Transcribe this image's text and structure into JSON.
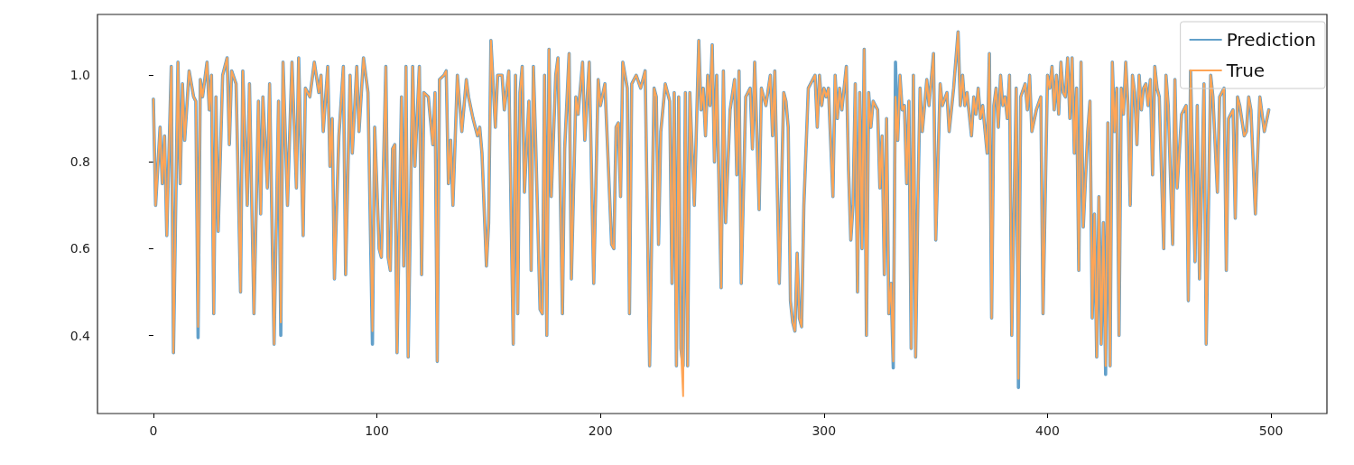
{
  "chart_data": {
    "type": "line",
    "x": [
      0,
      1,
      3,
      4,
      5,
      6,
      8,
      9,
      11,
      12,
      13,
      14,
      16,
      18,
      19,
      20,
      21,
      22,
      24,
      25,
      26,
      27,
      28,
      29,
      31,
      33,
      34,
      35,
      37,
      39,
      40,
      42,
      43,
      45,
      47,
      48,
      49,
      51,
      52,
      54,
      56,
      57,
      58,
      60,
      62,
      64,
      65,
      67,
      68,
      70,
      72,
      74,
      75,
      76,
      78,
      79,
      80,
      81,
      83,
      85,
      86,
      88,
      89,
      91,
      92,
      94,
      96,
      98,
      99,
      101,
      102,
      104,
      105,
      106,
      107,
      108,
      109,
      111,
      112,
      113,
      114,
      116,
      117,
      119,
      120,
      121,
      123,
      125,
      126,
      127,
      128,
      130,
      131,
      132,
      133,
      134,
      136,
      138,
      140,
      141,
      143,
      145,
      146,
      147,
      149,
      150,
      151,
      153,
      154,
      156,
      157,
      159,
      161,
      162,
      163,
      164,
      165,
      166,
      168,
      169,
      170,
      171,
      173,
      174,
      175,
      176,
      177,
      178,
      180,
      181,
      183,
      184,
      186,
      187,
      189,
      190,
      192,
      193,
      195,
      197,
      199,
      200,
      202,
      205,
      206,
      207,
      208,
      209,
      210,
      212,
      213,
      214,
      216,
      218,
      220,
      222,
      224,
      225,
      226,
      227,
      229,
      231,
      232,
      233,
      234,
      235,
      236,
      237,
      238,
      239,
      240,
      242,
      244,
      245,
      246,
      247,
      248,
      249,
      250,
      251,
      252,
      254,
      255,
      256,
      258,
      260,
      261,
      262,
      263,
      265,
      267,
      268,
      269,
      271,
      272,
      274,
      276,
      277,
      278,
      280,
      282,
      283,
      284,
      285,
      286,
      287,
      288,
      289,
      290,
      291,
      293,
      294,
      296,
      297,
      298,
      299,
      300,
      301,
      302,
      304,
      305,
      306,
      307,
      308,
      310,
      311,
      312,
      313,
      314,
      315,
      316,
      317,
      318,
      319,
      320,
      321,
      322,
      324,
      325,
      326,
      327,
      328,
      329,
      330,
      331,
      332,
      333,
      334,
      335,
      336,
      337,
      338,
      339,
      340,
      341,
      342,
      343,
      344,
      346,
      347,
      349,
      350,
      352,
      353,
      355,
      356,
      357,
      358,
      360,
      361,
      362,
      363,
      364,
      366,
      367,
      368,
      369,
      370,
      371,
      373,
      374,
      375,
      376,
      377,
      378,
      379,
      380,
      381,
      382,
      383,
      384,
      386,
      387,
      388,
      390,
      391,
      392,
      393,
      395,
      397,
      398,
      400,
      401,
      402,
      403,
      404,
      405,
      406,
      407,
      408,
      409,
      410,
      411,
      412,
      413,
      414,
      415,
      416,
      418,
      419,
      420,
      421,
      422,
      423,
      424,
      425,
      426,
      427,
      428,
      429,
      430,
      431,
      432,
      433,
      434,
      435,
      436,
      437,
      438,
      439,
      440,
      441,
      442,
      443,
      444,
      445,
      446,
      447,
      448,
      449,
      450,
      452,
      453,
      454,
      456,
      457,
      458,
      460,
      462,
      463,
      464,
      466,
      467,
      468,
      470,
      471,
      473,
      474,
      476,
      477,
      479,
      480,
      481,
      483,
      484,
      485,
      486,
      488,
      489,
      490,
      491,
      493,
      495,
      497,
      499
    ],
    "series": [
      {
        "name": "Prediction",
        "color": "#62a0ca",
        "values": [
          0.945,
          0.7,
          0.88,
          0.75,
          0.86,
          0.63,
          1.02,
          0.36,
          1.03,
          0.75,
          0.98,
          0.85,
          1.01,
          0.95,
          0.94,
          0.395,
          0.99,
          0.95,
          1.03,
          0.92,
          1.0,
          0.45,
          0.95,
          0.64,
          1.0,
          1.04,
          0.84,
          1.01,
          0.98,
          0.5,
          1.01,
          0.7,
          0.98,
          0.45,
          0.94,
          0.68,
          0.95,
          0.74,
          0.98,
          0.38,
          0.94,
          0.4,
          1.03,
          0.7,
          1.03,
          0.74,
          1.04,
          0.63,
          0.97,
          0.95,
          1.03,
          0.96,
          1.0,
          0.87,
          1.02,
          0.79,
          0.9,
          0.53,
          0.86,
          1.02,
          0.54,
          1.0,
          0.82,
          1.02,
          0.87,
          1.04,
          0.96,
          0.38,
          0.88,
          0.6,
          0.58,
          1.02,
          0.58,
          0.55,
          0.83,
          0.84,
          0.36,
          0.95,
          0.56,
          1.02,
          0.35,
          1.02,
          0.79,
          1.02,
          0.54,
          0.96,
          0.95,
          0.84,
          0.96,
          0.34,
          0.99,
          1.0,
          1.01,
          0.75,
          0.85,
          0.7,
          1.0,
          0.87,
          0.99,
          0.95,
          0.9,
          0.86,
          0.88,
          0.82,
          0.56,
          0.66,
          1.08,
          0.88,
          1.0,
          1.0,
          0.92,
          1.01,
          0.38,
          1.0,
          0.45,
          0.96,
          1.02,
          0.73,
          0.94,
          0.55,
          1.02,
          0.85,
          0.46,
          0.45,
          1.0,
          0.4,
          1.06,
          0.72,
          1.0,
          1.04,
          0.45,
          0.83,
          1.05,
          0.53,
          0.95,
          0.91,
          1.03,
          0.85,
          1.03,
          0.52,
          0.99,
          0.93,
          0.98,
          0.61,
          0.6,
          0.88,
          0.89,
          0.72,
          1.03,
          0.97,
          0.45,
          0.98,
          1.0,
          0.97,
          1.01,
          0.33,
          0.97,
          0.95,
          0.61,
          0.87,
          0.98,
          0.94,
          0.52,
          0.96,
          0.33,
          0.95,
          0.37,
          0.33,
          0.96,
          0.33,
          0.96,
          0.7,
          1.08,
          0.92,
          0.97,
          0.86,
          1.0,
          0.93,
          1.07,
          0.8,
          1.0,
          0.51,
          1.01,
          0.66,
          0.92,
          0.99,
          0.77,
          1.01,
          0.52,
          0.95,
          0.97,
          0.83,
          1.03,
          0.69,
          0.97,
          0.93,
          1.0,
          0.86,
          1.01,
          0.52,
          0.96,
          0.94,
          0.88,
          0.48,
          0.43,
          0.41,
          0.59,
          0.44,
          0.42,
          0.7,
          0.97,
          0.98,
          1.0,
          0.88,
          1.0,
          0.93,
          0.97,
          0.95,
          0.97,
          0.72,
          1.0,
          0.9,
          0.97,
          0.92,
          1.02,
          0.78,
          0.62,
          0.7,
          0.98,
          0.5,
          0.96,
          0.6,
          1.06,
          0.4,
          0.96,
          0.88,
          0.94,
          0.92,
          0.74,
          0.86,
          0.54,
          0.9,
          0.45,
          0.52,
          0.325,
          1.03,
          0.85,
          1.0,
          0.92,
          0.93,
          0.75,
          0.94,
          0.37,
          1.0,
          0.35,
          0.7,
          0.97,
          0.87,
          0.99,
          0.93,
          1.05,
          0.62,
          0.98,
          0.93,
          0.96,
          0.87,
          0.92,
          0.97,
          1.1,
          0.93,
          1.0,
          0.93,
          0.96,
          0.86,
          0.95,
          0.91,
          0.97,
          0.9,
          0.93,
          0.82,
          1.05,
          0.44,
          0.93,
          0.97,
          0.88,
          1.0,
          0.93,
          0.95,
          0.9,
          1.0,
          0.4,
          0.97,
          0.28,
          0.95,
          0.98,
          0.92,
          1.0,
          0.87,
          0.92,
          0.95,
          0.45,
          1.0,
          0.97,
          1.02,
          0.92,
          1.0,
          0.91,
          1.03,
          0.96,
          0.95,
          1.04,
          0.9,
          1.04,
          0.82,
          0.97,
          0.55,
          1.03,
          0.65,
          0.87,
          0.94,
          0.44,
          0.68,
          0.35,
          0.72,
          0.38,
          0.66,
          0.31,
          0.89,
          0.33,
          1.03,
          0.87,
          0.97,
          0.4,
          0.97,
          0.91,
          1.03,
          0.93,
          0.7,
          1.0,
          0.96,
          0.84,
          1.0,
          0.92,
          0.97,
          0.98,
          0.93,
          0.99,
          0.77,
          1.02,
          0.97,
          0.95,
          0.6,
          1.0,
          0.93,
          0.61,
          0.99,
          0.74,
          0.91,
          0.93,
          0.48,
          1.01,
          0.57,
          0.93,
          0.53,
          0.98,
          0.38,
          1.0,
          0.95,
          0.73,
          0.95,
          0.97,
          0.55,
          0.9,
          0.92,
          0.67,
          0.95,
          0.93,
          0.86,
          0.87,
          0.95,
          0.92,
          0.68,
          0.95,
          0.87,
          0.92
        ]
      },
      {
        "name": "True",
        "color": "#ffa556",
        "values": [
          0.945,
          0.7,
          0.88,
          0.75,
          0.86,
          0.63,
          1.02,
          0.36,
          1.03,
          0.75,
          0.98,
          0.85,
          1.01,
          0.95,
          0.94,
          0.42,
          0.99,
          0.95,
          1.03,
          0.92,
          1.0,
          0.45,
          0.95,
          0.64,
          1.0,
          1.04,
          0.84,
          1.01,
          0.98,
          0.5,
          1.01,
          0.7,
          0.98,
          0.45,
          0.94,
          0.68,
          0.95,
          0.74,
          0.98,
          0.38,
          0.94,
          0.43,
          1.03,
          0.7,
          1.03,
          0.74,
          1.04,
          0.63,
          0.97,
          0.95,
          1.03,
          0.96,
          1.0,
          0.87,
          1.02,
          0.79,
          0.9,
          0.53,
          0.86,
          1.02,
          0.54,
          1.0,
          0.82,
          1.02,
          0.87,
          1.04,
          0.96,
          0.41,
          0.88,
          0.6,
          0.58,
          1.02,
          0.58,
          0.55,
          0.83,
          0.84,
          0.36,
          0.95,
          0.56,
          1.02,
          0.35,
          1.02,
          0.79,
          1.02,
          0.54,
          0.96,
          0.95,
          0.84,
          0.96,
          0.34,
          0.99,
          1.0,
          1.01,
          0.75,
          0.85,
          0.7,
          1.0,
          0.87,
          0.99,
          0.95,
          0.9,
          0.86,
          0.88,
          0.82,
          0.56,
          0.66,
          1.08,
          0.88,
          1.0,
          1.0,
          0.92,
          1.01,
          0.38,
          1.0,
          0.45,
          0.96,
          1.02,
          0.73,
          0.94,
          0.55,
          1.02,
          0.85,
          0.46,
          0.45,
          1.0,
          0.4,
          1.06,
          0.72,
          1.0,
          1.04,
          0.45,
          0.83,
          1.05,
          0.53,
          0.95,
          0.91,
          1.03,
          0.85,
          1.03,
          0.52,
          0.99,
          0.93,
          0.98,
          0.61,
          0.6,
          0.88,
          0.89,
          0.72,
          1.03,
          0.97,
          0.45,
          0.98,
          1.0,
          0.97,
          1.01,
          0.33,
          0.97,
          0.95,
          0.61,
          0.87,
          0.98,
          0.94,
          0.52,
          0.96,
          0.33,
          0.95,
          0.37,
          0.26,
          0.96,
          0.33,
          0.96,
          0.7,
          1.08,
          0.92,
          0.97,
          0.86,
          1.0,
          0.93,
          1.07,
          0.8,
          1.0,
          0.51,
          1.01,
          0.66,
          0.92,
          0.99,
          0.77,
          1.01,
          0.52,
          0.95,
          0.97,
          0.83,
          1.03,
          0.69,
          0.97,
          0.93,
          1.0,
          0.86,
          1.01,
          0.52,
          0.96,
          0.94,
          0.88,
          0.48,
          0.43,
          0.41,
          0.59,
          0.44,
          0.42,
          0.7,
          0.97,
          0.98,
          1.0,
          0.88,
          1.0,
          0.93,
          0.97,
          0.95,
          0.97,
          0.72,
          1.0,
          0.9,
          0.97,
          0.92,
          1.02,
          0.78,
          0.62,
          0.7,
          0.98,
          0.5,
          0.96,
          0.6,
          1.06,
          0.4,
          0.96,
          0.88,
          0.94,
          0.92,
          0.74,
          0.86,
          0.54,
          0.9,
          0.45,
          0.52,
          0.34,
          0.95,
          0.85,
          1.0,
          0.92,
          0.93,
          0.75,
          0.94,
          0.37,
          1.0,
          0.35,
          0.7,
          0.97,
          0.87,
          0.99,
          0.93,
          1.05,
          0.62,
          0.98,
          0.93,
          0.96,
          0.87,
          0.92,
          0.97,
          1.1,
          0.93,
          1.0,
          0.93,
          0.96,
          0.86,
          0.95,
          0.91,
          0.97,
          0.9,
          0.93,
          0.82,
          1.05,
          0.44,
          0.93,
          0.97,
          0.88,
          1.0,
          0.93,
          0.95,
          0.9,
          1.0,
          0.4,
          0.97,
          0.3,
          0.95,
          0.98,
          0.92,
          1.0,
          0.87,
          0.92,
          0.95,
          0.45,
          1.0,
          0.97,
          1.02,
          0.92,
          1.0,
          0.91,
          1.03,
          0.96,
          0.95,
          1.04,
          0.9,
          1.04,
          0.82,
          0.97,
          0.55,
          1.03,
          0.65,
          0.87,
          0.94,
          0.44,
          0.68,
          0.35,
          0.72,
          0.38,
          0.66,
          0.33,
          0.89,
          0.33,
          1.03,
          0.87,
          0.97,
          0.4,
          0.97,
          0.91,
          1.03,
          0.93,
          0.7,
          1.0,
          0.96,
          0.84,
          1.0,
          0.92,
          0.97,
          0.98,
          0.93,
          0.99,
          0.77,
          1.02,
          0.97,
          0.95,
          0.6,
          1.0,
          0.93,
          0.61,
          0.99,
          0.74,
          0.91,
          0.93,
          0.48,
          1.01,
          0.57,
          0.93,
          0.53,
          0.98,
          0.38,
          1.0,
          0.95,
          0.73,
          0.95,
          0.97,
          0.55,
          0.9,
          0.92,
          0.67,
          0.95,
          0.93,
          0.86,
          0.87,
          0.95,
          0.92,
          0.68,
          0.95,
          0.87,
          0.92
        ]
      }
    ],
    "xlim": [
      -25,
      525
    ],
    "xticks": [
      0,
      100,
      200,
      300,
      400,
      500
    ],
    "ylim": [
      0.22,
      1.14
    ],
    "yticks": [
      0.4,
      0.6,
      0.8,
      {
        "value": 1,
        "label": "1.0"
      }
    ],
    "grid": false,
    "legend": "top right",
    "marker": "none",
    "line_style": "solid"
  }
}
